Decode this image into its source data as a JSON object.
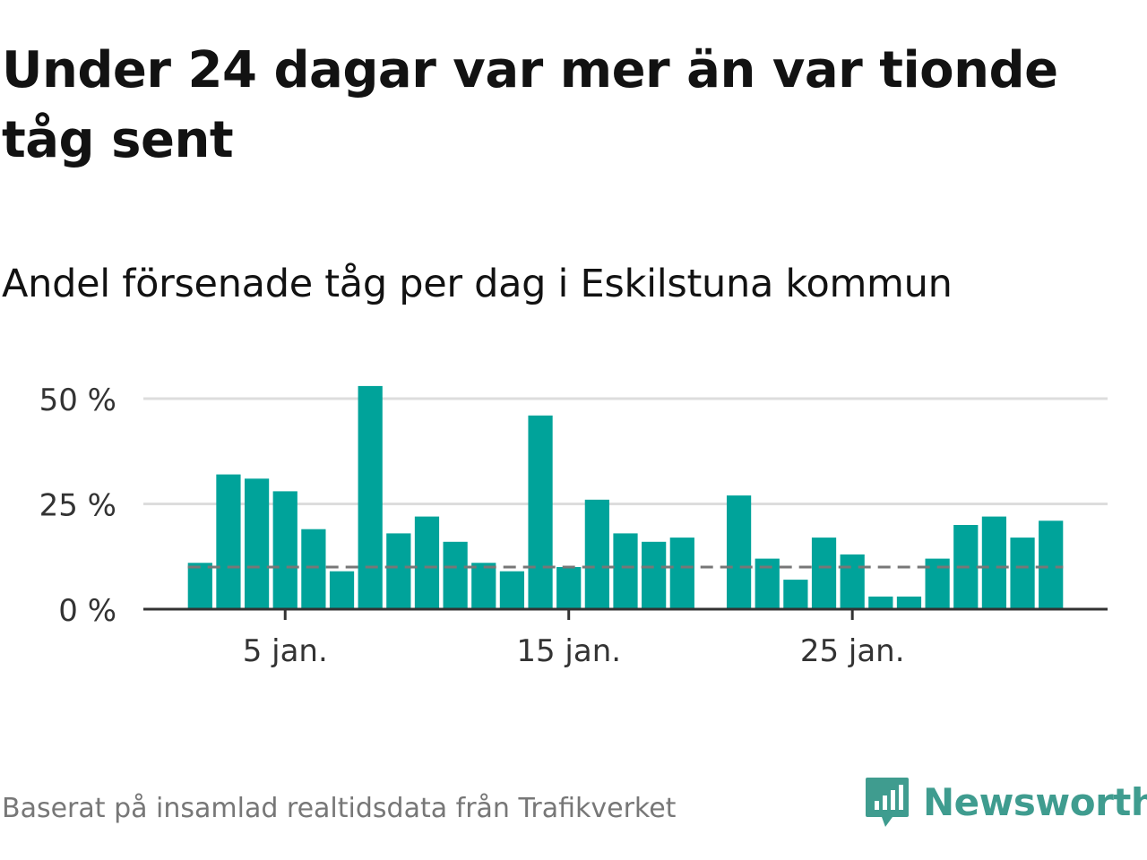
{
  "title": "Under 24 dagar var mer än var tionde tåg sent",
  "subtitle": "Andel försenade tåg per dag i Eskilstuna kommun",
  "source": "Baserat på insamlad realtidsdata från Trafikverket",
  "brand": "Newsworthy",
  "colors": {
    "bar": "#00a39a",
    "reference_line": "#777777",
    "gridline": "#dddddd",
    "axis": "#333333",
    "brand": "#3f9c8f"
  },
  "chart_data": {
    "type": "bar",
    "x": [
      2,
      3,
      4,
      5,
      6,
      7,
      8,
      9,
      10,
      11,
      12,
      13,
      14,
      15,
      16,
      17,
      18,
      19,
      20,
      21,
      22,
      23,
      24,
      25,
      26,
      27,
      28,
      29,
      30,
      31,
      32
    ],
    "values": [
      11,
      32,
      31,
      28,
      19,
      9,
      53,
      18,
      22,
      16,
      11,
      9,
      46,
      10,
      26,
      18,
      16,
      17,
      null,
      27,
      12,
      7,
      17,
      13,
      3,
      3,
      12,
      20,
      22,
      17,
      21
    ],
    "unit": "%",
    "reference_line": 10,
    "xlim": [
      0,
      34
    ],
    "ylim": [
      0,
      55
    ],
    "yticks": [
      0,
      25,
      50
    ],
    "ytick_labels": [
      "0 %",
      "25 %",
      "50 %"
    ],
    "xticks": [
      5,
      15,
      25
    ],
    "xtick_labels": [
      "5 jan.",
      "15 jan.",
      "25 jan."
    ],
    "grid": true,
    "legend": "none"
  }
}
